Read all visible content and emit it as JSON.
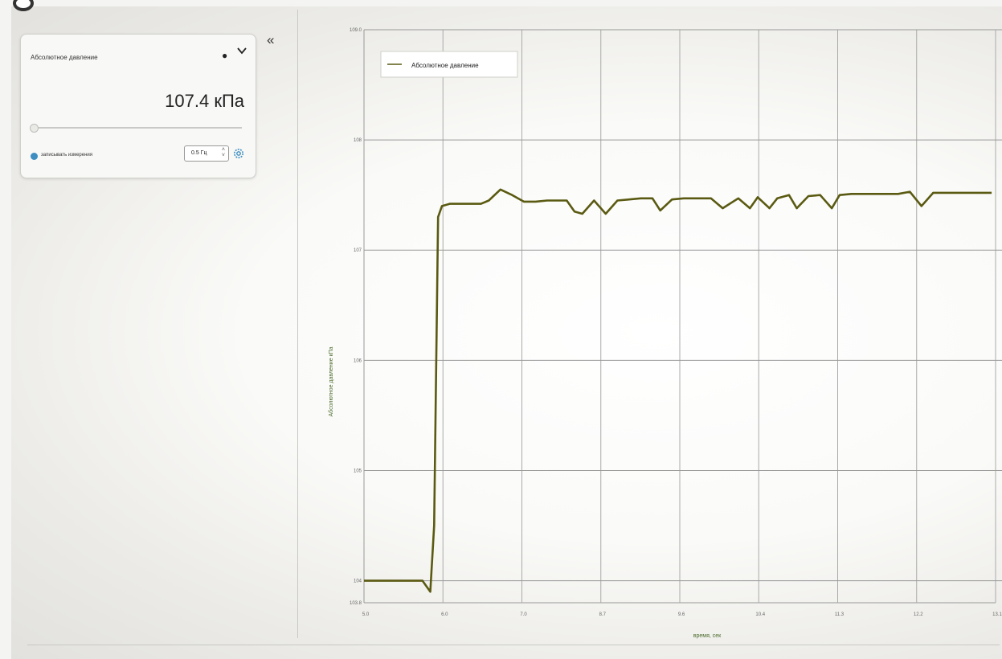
{
  "sensor_card": {
    "title": "Абсолютное давление",
    "value": "107.4 кПа",
    "record_label": "записывать измерения",
    "frequency": "0.5 Гц",
    "collapse_symbol": "«",
    "icons": [
      "chevron-down-icon",
      "gear-icon",
      "collapse-icon"
    ]
  },
  "chart_data": {
    "type": "line",
    "xlabel": "время, сек",
    "ylabel": "Абсолютное давление кПа",
    "xlim": [
      5,
      13.1
    ],
    "ylim": [
      103.8,
      109
    ],
    "x_ticks": [
      "5.0",
      "6.0",
      "7.0",
      "8.7",
      "9.6",
      "10.4",
      "11.3",
      "12.2",
      "13.1"
    ],
    "y_ticks": [
      "103.8",
      "104",
      "105",
      "106",
      "107",
      "108",
      "109.0"
    ],
    "legend": "top-left",
    "grid": true,
    "line_color": "#5a5a12",
    "series": [
      {
        "name": "Абсолютное давление",
        "x": [
          5.0,
          5.2,
          5.4,
          5.6,
          5.75,
          5.85,
          5.9,
          5.95,
          6.0,
          6.1,
          6.3,
          6.5,
          6.6,
          6.75,
          6.9,
          7.05,
          7.2,
          7.35,
          7.5,
          7.6,
          7.7,
          7.8,
          7.95,
          8.1,
          8.25,
          8.4,
          8.55,
          8.7,
          8.8,
          8.95,
          9.1,
          9.2,
          9.3,
          9.45,
          9.6,
          9.8,
          9.95,
          10.05,
          10.2,
          10.3,
          10.45,
          10.55,
          10.7,
          10.85,
          11.0,
          11.1,
          11.25,
          11.4,
          11.55,
          11.7,
          11.85,
          12.0,
          12.15,
          12.3,
          12.4,
          12.55,
          12.7,
          12.85,
          13.05
        ],
        "y": [
          104.0,
          104.0,
          104.0,
          104.0,
          104.0,
          103.9,
          104.5,
          107.3,
          107.4,
          107.42,
          107.42,
          107.42,
          107.45,
          107.55,
          107.5,
          107.44,
          107.44,
          107.45,
          107.45,
          107.45,
          107.35,
          107.33,
          107.45,
          107.33,
          107.45,
          107.46,
          107.47,
          107.47,
          107.36,
          107.46,
          107.47,
          107.47,
          107.47,
          107.47,
          107.38,
          107.47,
          107.38,
          107.48,
          107.38,
          107.47,
          107.5,
          107.38,
          107.49,
          107.5,
          107.38,
          107.5,
          107.51,
          107.51,
          107.51,
          107.51,
          107.51,
          107.53,
          107.4,
          107.52,
          107.52,
          107.52,
          107.52,
          107.52,
          107.52
        ]
      }
    ]
  }
}
